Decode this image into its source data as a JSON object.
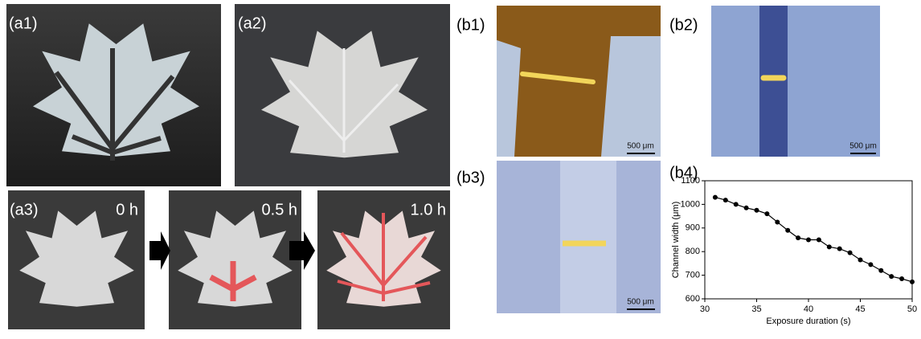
{
  "panels": {
    "a1": "(a1)",
    "a2": "(a2)",
    "a3": "(a3)",
    "times": [
      "0 h",
      "0.5 h",
      "1.0 h"
    ],
    "b1": "(b1)",
    "b2": "(b2)",
    "b3": "(b3)",
    "b4": "(b4)",
    "scale_bars": [
      "500 μm",
      "500 μm",
      "500 μm"
    ]
  },
  "chart_data": {
    "type": "line",
    "xlabel": "Exposure duration (s)",
    "ylabel": "Channel width (μm)",
    "x": [
      31,
      32,
      33,
      34,
      35,
      36,
      37,
      38,
      39,
      40,
      41,
      42,
      43,
      44,
      45,
      46,
      47,
      48,
      49,
      50
    ],
    "series": [
      {
        "color": "#000000",
        "values": [
          1030,
          1018,
          1000,
          985,
          975,
          960,
          925,
          890,
          858,
          850,
          850,
          820,
          812,
          795,
          765,
          745,
          720,
          695,
          685,
          672
        ]
      }
    ],
    "xlim": [
      30,
      50
    ],
    "ylim": [
      600,
      1100
    ],
    "xticks": [
      30,
      35,
      40,
      45,
      50
    ],
    "yticks": [
      600,
      700,
      800,
      900,
      1000,
      1100
    ]
  }
}
